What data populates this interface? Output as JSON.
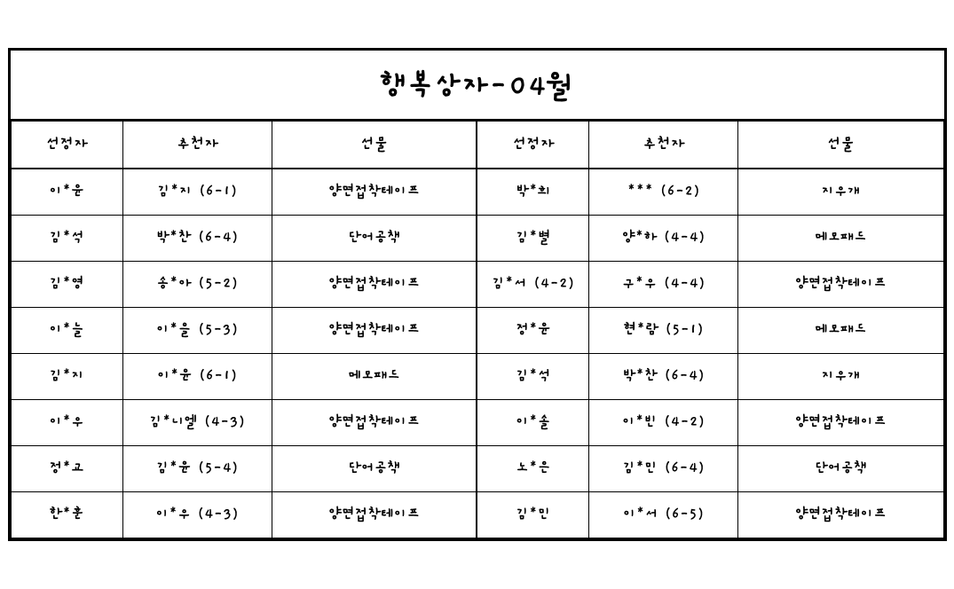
{
  "title": "행복상자-04월",
  "columns": [
    "선정자",
    "추천자",
    "선물",
    "선정자",
    "추천자",
    "선물"
  ],
  "rows": [
    [
      "이*윤",
      "김*지 (6-1)",
      "양면접착테이프",
      "박*희",
      "*** (6-2)",
      "지우개"
    ],
    [
      "김*석",
      "박*찬 (6-4)",
      "단어공책",
      "김*별",
      "양*하 (4-4)",
      "메모패드"
    ],
    [
      "김*영",
      "송*아 (5-2)",
      "양면접착테이프",
      "김*서 (4-2)",
      "구*우 (4-4)",
      "양면접착테이프"
    ],
    [
      "이*늘",
      "이*을 (5-3)",
      "양면접착테이프",
      "정*윤",
      "현*람 (5-1)",
      "메모패드"
    ],
    [
      "김*지",
      "이*윤 (6-1)",
      "메모패드",
      "김*석",
      "박*찬 (6-4)",
      "지우개"
    ],
    [
      "이*우",
      "김*니엘 (4-3)",
      "양면접착테이프",
      "이*솔",
      "이*빈 (4-2)",
      "양면접착테이프"
    ],
    [
      "정*교",
      "김*윤 (5-4)",
      "단어공책",
      "노*은",
      "김*민 (6-4)",
      "단어공책"
    ],
    [
      "한*훈",
      "이*우 (4-3)",
      "양면접착테이프",
      "김*민",
      "이*서 (6-5)",
      "양면접착테이프"
    ]
  ],
  "styling": {
    "border_color": "#000000",
    "outer_border_width": 3,
    "header_border_width": 2.5,
    "background_color": "#ffffff",
    "title_fontsize": 36,
    "header_fontsize": 19,
    "cell_fontsize": 18,
    "font_weight": "bold",
    "column_widths_pct": [
      12,
      16,
      22,
      12,
      16,
      22
    ]
  }
}
